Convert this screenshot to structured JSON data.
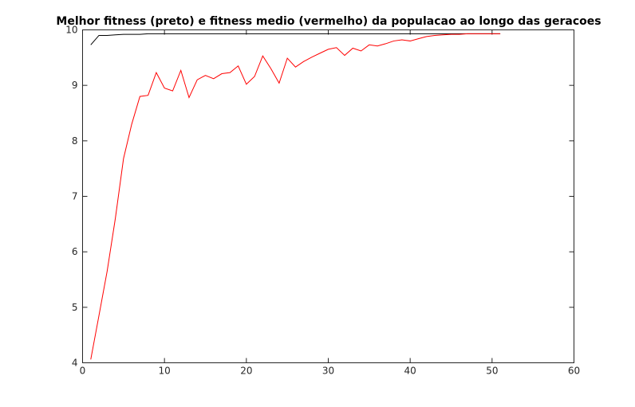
{
  "chart_data": {
    "type": "line",
    "title": "Melhor fitness (preto) e fitness medio (vermelho) da populacao ao longo das geracoes",
    "xlabel": "",
    "ylabel": "",
    "xlim": [
      0,
      60
    ],
    "ylim": [
      4,
      10
    ],
    "xticks": [
      0,
      10,
      20,
      30,
      40,
      50,
      60
    ],
    "yticks": [
      4,
      5,
      6,
      7,
      8,
      9,
      10
    ],
    "grid": false,
    "legend": "none",
    "series": [
      {
        "color": "#000000",
        "x": [
          1,
          2,
          3,
          4,
          5,
          6,
          7,
          8,
          9,
          10,
          11,
          12,
          13,
          14,
          15,
          16,
          17,
          18,
          19,
          20,
          21,
          22,
          23,
          24,
          25,
          26,
          27,
          28,
          29,
          30,
          31,
          32,
          33,
          34,
          35,
          36,
          37,
          38,
          39,
          40,
          41,
          42,
          43,
          44,
          45,
          46,
          47,
          48,
          49,
          50,
          51
        ],
        "values": [
          9.73,
          9.9,
          9.9,
          9.91,
          9.92,
          9.92,
          9.92,
          9.93,
          9.93,
          9.93,
          9.93,
          9.93,
          9.93,
          9.93,
          9.93,
          9.93,
          9.93,
          9.93,
          9.93,
          9.93,
          9.93,
          9.93,
          9.93,
          9.93,
          9.93,
          9.93,
          9.93,
          9.93,
          9.93,
          9.93,
          9.93,
          9.93,
          9.93,
          9.93,
          9.93,
          9.93,
          9.93,
          9.93,
          9.93,
          9.93,
          9.93,
          9.93,
          9.93,
          9.93,
          9.93,
          9.93,
          9.93,
          9.93,
          9.93,
          9.93,
          9.93
        ]
      },
      {
        "color": "#ff0000",
        "x": [
          1,
          2,
          3,
          4,
          5,
          6,
          7,
          8,
          9,
          10,
          11,
          12,
          13,
          14,
          15,
          16,
          17,
          18,
          19,
          20,
          21,
          22,
          23,
          24,
          25,
          26,
          27,
          28,
          29,
          30,
          31,
          32,
          33,
          34,
          35,
          36,
          37,
          38,
          39,
          40,
          41,
          42,
          43,
          44,
          45,
          46,
          47,
          48,
          49,
          50,
          51
        ],
        "values": [
          4.06,
          4.85,
          5.65,
          6.6,
          7.68,
          8.3,
          8.8,
          8.82,
          9.23,
          8.95,
          8.9,
          9.27,
          8.78,
          9.1,
          9.18,
          9.12,
          9.21,
          9.23,
          9.35,
          9.02,
          9.16,
          9.53,
          9.3,
          9.04,
          9.49,
          9.33,
          9.43,
          9.51,
          9.58,
          9.65,
          9.68,
          9.54,
          9.67,
          9.62,
          9.73,
          9.71,
          9.75,
          9.8,
          9.82,
          9.8,
          9.84,
          9.88,
          9.9,
          9.91,
          9.92,
          9.92,
          9.93,
          9.93,
          9.93,
          9.93,
          9.93
        ]
      }
    ]
  }
}
